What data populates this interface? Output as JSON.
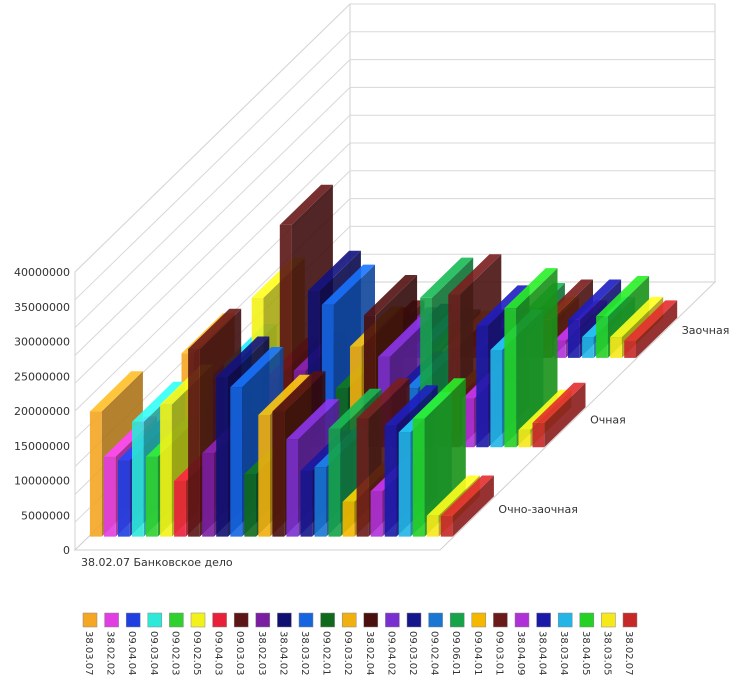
{
  "chart_data": {
    "type": "bar",
    "subtype": "3d-clustered",
    "title": "",
    "xlabel": "",
    "ylabel": "",
    "ylim": [
      0,
      40000000
    ],
    "y_ticks": [
      0,
      5000000,
      10000000,
      15000000,
      20000000,
      25000000,
      30000000,
      35000000,
      40000000
    ],
    "y_tick_labels": [
      "0",
      "5000000",
      "10000000",
      "15000000",
      "20000000",
      "25000000",
      "30000000",
      "35000000",
      "40000000"
    ],
    "grid": true,
    "legend_position": "bottom",
    "x_category_label": "38.02.07 Банковское дело",
    "depth_categories": [
      "Очно-заочная",
      "Очная",
      "Заочная"
    ],
    "series": [
      {
        "name": "38.03.07",
        "color": "#f5a623",
        "values": [
          18000000,
          13500000,
          0
        ]
      },
      {
        "name": "38.02.02",
        "color": "#e23de2",
        "values": [
          11500000,
          6500000,
          0
        ]
      },
      {
        "name": "09.04.04",
        "color": "#1f3fe0",
        "values": [
          11000000,
          10000000,
          0
        ]
      },
      {
        "name": "09.03.04",
        "color": "#2ee8d8",
        "values": [
          16500000,
          12000000,
          0
        ]
      },
      {
        "name": "09.02.03",
        "color": "#2fd12f",
        "values": [
          11500000,
          8000000,
          0
        ]
      },
      {
        "name": "09.02.05",
        "color": "#f2f21a",
        "values": [
          19000000,
          21500000,
          0
        ]
      },
      {
        "name": "09.04.03",
        "color": "#e8203a",
        "values": [
          8000000,
          10000000,
          1500000
        ]
      },
      {
        "name": "09.03.03",
        "color": "#5c1616",
        "values": [
          27000000,
          32000000,
          2500000
        ]
      },
      {
        "name": "38.02.03",
        "color": "#7b1fa2",
        "values": [
          12000000,
          11000000,
          1500000
        ]
      },
      {
        "name": "38.04.02",
        "color": "#101070",
        "values": [
          23000000,
          22500000,
          2000000
        ]
      },
      {
        "name": "38.03.02",
        "color": "#1565e0",
        "values": [
          21500000,
          20500000,
          1500000
        ]
      },
      {
        "name": "09.02.01",
        "color": "#0f6a1c",
        "values": [
          9000000,
          8500000,
          1200000
        ]
      },
      {
        "name": "09.03.02",
        "color": "#f0b010",
        "values": [
          17500000,
          14500000,
          1000000
        ]
      },
      {
        "name": "38.02.04",
        "color": "#4a0f0f",
        "values": [
          18000000,
          19000000,
          1200000
        ]
      },
      {
        "name": "09.04.02",
        "color": "#7a2fd0",
        "values": [
          14000000,
          13000000,
          1000000
        ]
      },
      {
        "name": "09.03.02",
        "color": "#16168c",
        "values": [
          9500000,
          8000000,
          1500000
        ]
      },
      {
        "name": "09.02.04",
        "color": "#1976d2",
        "values": [
          10000000,
          8500000,
          1500000
        ]
      },
      {
        "name": "09.06.01",
        "color": "#16a34a",
        "values": [
          15500000,
          21500000,
          5000000
        ]
      },
      {
        "name": "09.04.01",
        "color": "#f5b800",
        "values": [
          5000000,
          5500000,
          3000000
        ]
      },
      {
        "name": "09.03.01",
        "color": "#6b1a1a",
        "values": [
          17000000,
          22000000,
          5500000
        ]
      },
      {
        "name": "38.04.09",
        "color": "#b030d8",
        "values": [
          6500000,
          7000000,
          2500000
        ]
      },
      {
        "name": "38.04.04",
        "color": "#1a1aa8",
        "values": [
          16000000,
          17500000,
          5500000
        ]
      },
      {
        "name": "38.03.04",
        "color": "#22b5e5",
        "values": [
          15000000,
          14000000,
          3000000
        ]
      },
      {
        "name": "38.04.05",
        "color": "#24d124",
        "values": [
          17000000,
          20000000,
          6000000
        ]
      },
      {
        "name": "38.03.05",
        "color": "#f7e81a",
        "values": [
          3000000,
          2500000,
          3000000
        ]
      },
      {
        "name": "38.02.07",
        "color": "#c62828",
        "values": [
          3000000,
          3500000,
          2500000
        ]
      }
    ]
  }
}
